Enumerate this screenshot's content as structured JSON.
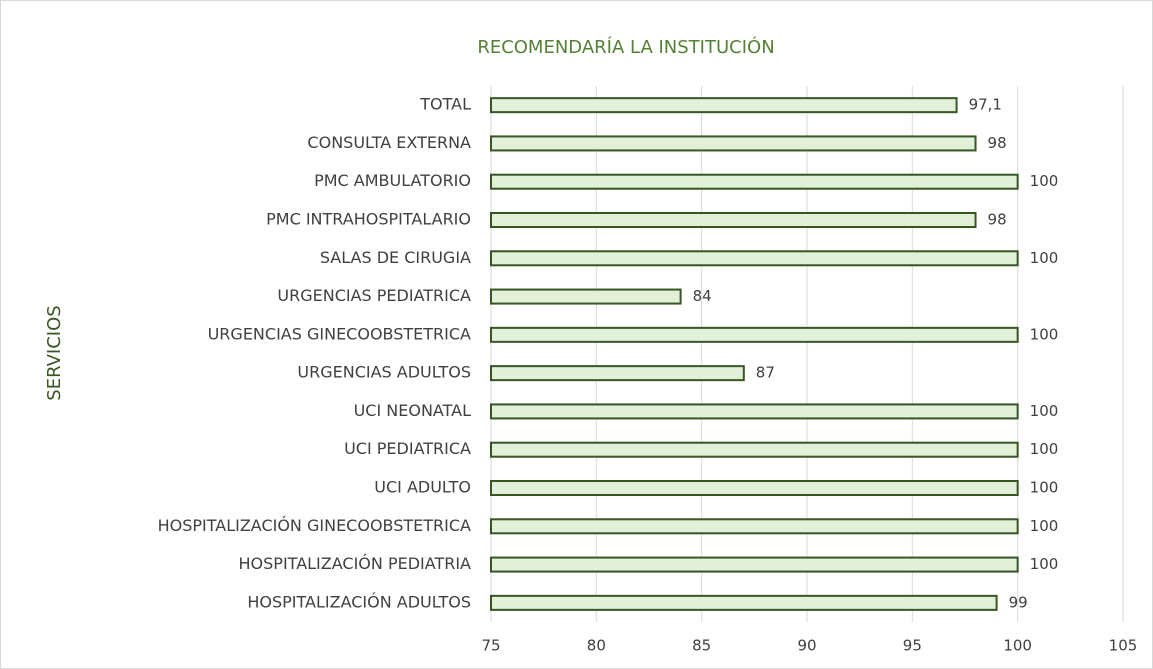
{
  "chart_data": {
    "type": "barh",
    "title": "RECOMENDARÍA LA INSTITUCIÓN",
    "y_label": "SERVICIOS",
    "categories": [
      "TOTAL",
      "CONSULTA EXTERNA",
      "PMC AMBULATORIO",
      "PMC INTRAHOSPITALARIO",
      "SALAS DE CIRUGIA",
      "URGENCIAS PEDIATRICA",
      "URGENCIAS GINECOOBSTETRICA",
      "URGENCIAS ADULTOS",
      "UCI NEONATAL",
      "UCI PEDIATRICA",
      "UCI ADULTO",
      "HOSPITALIZACIÓN GINECOOBSTETRICA",
      "HOSPITALIZACIÓN PEDIATRIA",
      "HOSPITALIZACIÓN ADULTOS"
    ],
    "values": [
      97.1,
      98,
      100,
      98,
      100,
      84,
      100,
      87,
      100,
      100,
      100,
      100,
      100,
      99
    ],
    "value_labels": [
      "97,1",
      "98",
      "100",
      "98",
      "100",
      "84",
      "100",
      "87",
      "100",
      "100",
      "100",
      "100",
      "100",
      "99"
    ],
    "color": "#e2f0d9",
    "edge_color": "#375623",
    "xlim": [
      75,
      105
    ],
    "xticks": [
      75,
      80,
      85,
      90,
      95,
      100,
      105
    ],
    "grid": true
  }
}
